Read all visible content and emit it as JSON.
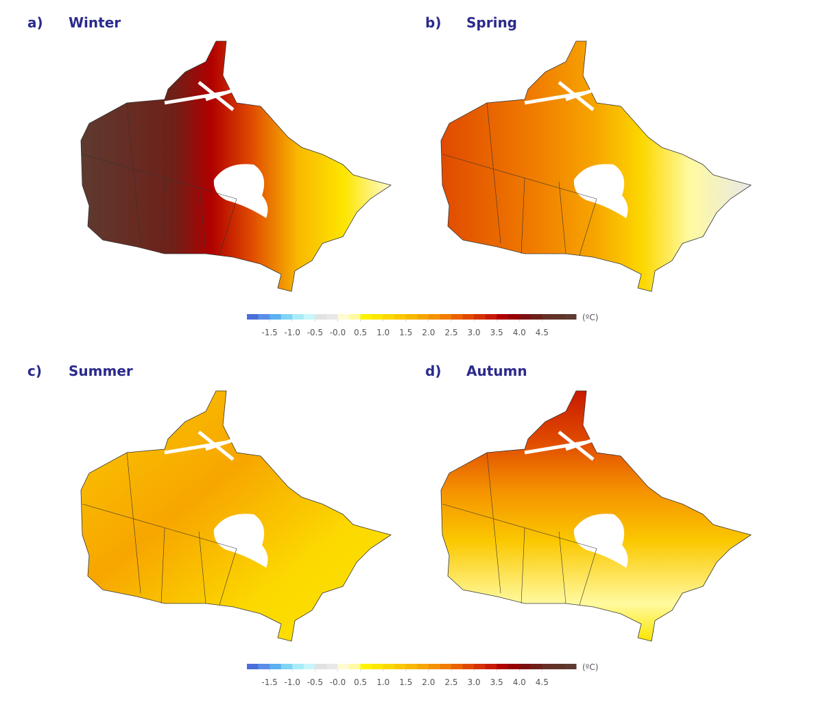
{
  "panels": [
    {
      "letter": "a)",
      "title": "Winter"
    },
    {
      "letter": "b)",
      "title": "Spring"
    },
    {
      "letter": "c)",
      "title": "Summer"
    },
    {
      "letter": "d)",
      "title": "Autumn"
    }
  ],
  "colorbars": [
    {
      "unit": "(ºC)",
      "clim": [
        -2,
        5.25
      ],
      "colors": [
        "#4a6fd8",
        "#5b8ee8",
        "#5ab0f0",
        "#7fd4f5",
        "#a8ecf8",
        "#c8f6fa",
        "#e2e2e2",
        "#e8e8e8",
        "#fffbd0",
        "#fffaa0",
        "#fff200",
        "#fde600",
        "#fcd800",
        "#fbc800",
        "#f9b800",
        "#f7a600",
        "#f59200",
        "#f07c00",
        "#ea6200",
        "#e04a00",
        "#d43200",
        "#c81a00",
        "#b00000",
        "#960000",
        "#7c1010",
        "#6e2018",
        "#663028",
        "#603428",
        "#5e3a30"
      ],
      "ticks": [
        -1.5,
        {
          "value": -1,
          "label": "-1.0"
        },
        -0.5,
        {
          "value": 0,
          "label": "-0.0"
        },
        0.5,
        {
          "value": 1,
          "label": "1.0"
        },
        1.5,
        {
          "value": 2,
          "label": "2.0"
        },
        2.5,
        {
          "value": 3,
          "label": "3.0"
        },
        3.5,
        {
          "value": 4,
          "label": "4.0"
        },
        4.5
      ]
    },
    {
      "unit": "(ºC)",
      "clim": [
        -2,
        5.25
      ],
      "colors": [
        "#4a6fd8",
        "#5b8ee8",
        "#5ab0f0",
        "#7fd4f5",
        "#a8ecf8",
        "#c8f6fa",
        "#e2e2e2",
        "#e8e8e8",
        "#fffbd0",
        "#fffaa0",
        "#fff200",
        "#fde600",
        "#fcd800",
        "#fbc800",
        "#f9b800",
        "#f7a600",
        "#f59200",
        "#f07c00",
        "#ea6200",
        "#e04a00",
        "#d43200",
        "#c81a00",
        "#b00000",
        "#960000",
        "#7c1010",
        "#6e2018",
        "#663028",
        "#603428",
        "#5e3a30"
      ],
      "ticks": [
        -1.5,
        {
          "value": -1,
          "label": "-1.0"
        },
        -0.5,
        {
          "value": 0,
          "label": "-0.0"
        },
        0.5,
        {
          "value": 1,
          "label": "1.0"
        },
        1.5,
        {
          "value": 2,
          "label": "2.0"
        },
        2.5,
        {
          "value": 3,
          "label": "3.0"
        },
        3.5,
        {
          "value": 4,
          "label": "4.0"
        },
        4.5
      ]
    }
  ]
}
